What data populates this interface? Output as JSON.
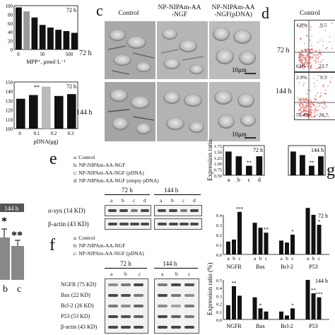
{
  "top_left_chart": {
    "time": "72 h",
    "xlabel": "MPP⁺, μmol·L⁻¹",
    "yticks": [
      "100",
      "80",
      "60",
      "40",
      "20",
      "0"
    ],
    "xticks": [
      "0",
      "50",
      "500"
    ],
    "bars": [
      96,
      87,
      73,
      56,
      50,
      45,
      42,
      38
    ]
  },
  "pdna_chart": {
    "time": "72 h",
    "xlabel": "pDNA(μg)",
    "yticks": [
      "150",
      "140",
      "130",
      "120",
      "110",
      "100"
    ],
    "xticks": [
      "0",
      "0.1",
      "0.2",
      "0.3"
    ],
    "sig": "**",
    "bars": [
      132,
      136,
      145,
      135,
      137
    ]
  },
  "panel_c": {
    "letter": "c",
    "col_labels": [
      "Control",
      "NP-NIPAm-AA\n-NGF",
      "NP-NIPAm-AA\n-NGF(pDNA)"
    ],
    "row_labels": [
      "72 h",
      "144 h"
    ],
    "scale_bar": "10μm"
  },
  "panel_d": {
    "letter": "d",
    "col_label": "Control",
    "row_labels": [
      "72 h",
      "144 h"
    ],
    "quadrants_72": [
      "4.8%",
      "9.5",
      "62%",
      "23.7"
    ],
    "quadrants_144": [
      "2.9%",
      "9.5",
      "59.4%",
      "26.7"
    ]
  },
  "bottom_left_chart": {
    "legend": "144 h",
    "categories": [
      "b",
      "c"
    ],
    "sig": [
      "*",
      "**"
    ]
  },
  "panel_e": {
    "letter": "e",
    "legend": [
      "a:  Control",
      "b:  NP-NIPAm-AA-NGF",
      "c:  NP-NIPAm-AA-NGF (pDNA)",
      "d:  NP-NIPAm-AA-NGF (empty pDNA)"
    ],
    "times": [
      "72 h",
      "144 h"
    ],
    "lanes": [
      "a",
      "b",
      "c",
      "d"
    ],
    "proteins": [
      "α-syn (14 KD)",
      "β-actin (43 KD)"
    ]
  },
  "panel_f": {
    "letter": "f",
    "legend": [
      "a:  Control",
      "b:  NP-NIPAm-AA-NGF",
      "c:  NP-NIPAm-AA-NGF (pDNA)"
    ],
    "times": [
      "72 h",
      "144 h"
    ],
    "lanes": [
      "a",
      "b",
      "c"
    ],
    "proteins": [
      "NGFR (75 KD)",
      "Bax (22 KD)",
      "Bcl-2 (26 KD)",
      "P53 (53 KD)",
      "β-actin (43 KD)"
    ]
  },
  "panel_g": {
    "letter": "g",
    "ylabel": "Expression ratio (%)",
    "top": {
      "groups": [
        {
          "time": "72 h",
          "values": [
            1.5,
            1.3,
            0.9,
            1.3
          ],
          "labels": [
            "a",
            "b",
            "c",
            "d"
          ],
          "sig": [
            "",
            "",
            "**",
            ""
          ]
        },
        {
          "time": "144 h",
          "values": [
            1.5,
            1.35,
            0.9,
            1.3
          ],
          "labels": [],
          "sig": [
            "",
            "",
            "**",
            ""
          ]
        }
      ],
      "yticks": [
        "1.75",
        "1.50",
        "1.25",
        "1.00",
        "0.75",
        "0.50"
      ]
    },
    "mid": {
      "time": "72 h",
      "yticks": [
        "0.4",
        "0.3",
        "0.2",
        "0.1",
        "0.0"
      ],
      "groups": [
        "NGFR",
        "Bax",
        "Bcl-2",
        "P53"
      ],
      "values": [
        [
          0.13,
          0.15,
          0.43
        ],
        [
          0.32,
          0.27,
          0.22
        ],
        [
          0.14,
          0.12,
          0.2
        ],
        [
          0.47,
          0.4,
          0.3
        ]
      ],
      "sig": [
        [
          "",
          "",
          "***"
        ],
        [
          "",
          "",
          "**"
        ],
        [
          "",
          "",
          "*"
        ],
        [
          "",
          "",
          "*"
        ]
      ],
      "sub": [
        "a",
        "b",
        "c"
      ]
    },
    "low": {
      "time": "144 h",
      "yticks": [
        "0.5",
        "0.4",
        "0.3",
        "0.2",
        "0.1",
        "0.0"
      ],
      "groups": [
        "NGFR",
        "Bax",
        "Bcl-2",
        "P53"
      ],
      "values": [
        [
          0.18,
          0.42,
          0.3
        ],
        [
          0.28,
          0.14,
          0.1
        ],
        [
          0.1,
          0.05,
          0.14
        ],
        [
          0.5,
          0.33,
          0.28
        ]
      ],
      "sig": [
        [
          "",
          "**",
          ""
        ],
        [
          "",
          "*",
          ""
        ],
        [
          "",
          "",
          "*"
        ],
        [
          "",
          "**",
          "***"
        ]
      ]
    }
  }
}
